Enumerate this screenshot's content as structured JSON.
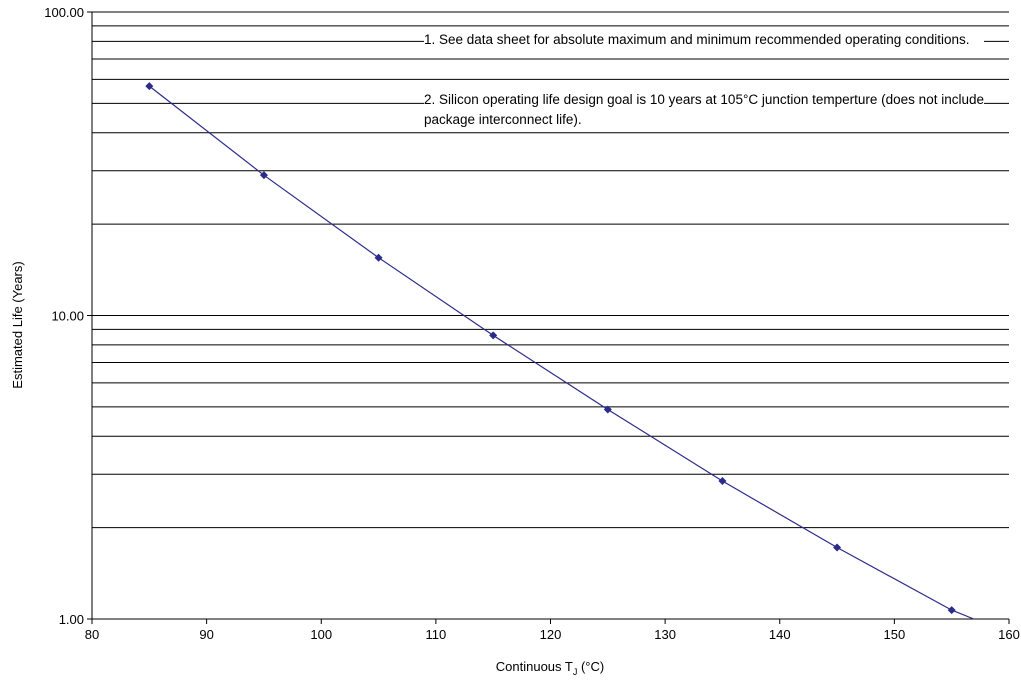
{
  "chart_data": {
    "type": "line",
    "title": "",
    "xlabel_main": "Continuous T",
    "xlabel_sub": "J",
    "xlabel_unit": " (°C)",
    "ylabel": "Estimated Life (Years)",
    "xlim": [
      80,
      160
    ],
    "ylim": [
      1,
      100
    ],
    "yscale": "log",
    "x_ticks": [
      80,
      90,
      100,
      110,
      120,
      130,
      140,
      150,
      160
    ],
    "y_ticks": [
      "1.00",
      "10.00",
      "100.00"
    ],
    "grid": "horizontal",
    "series": [
      {
        "color": "#2b2b8a",
        "marker": "diamond",
        "x": [
          85,
          95,
          105,
          115,
          125,
          135,
          145,
          155,
          157.5
        ],
        "y": [
          57,
          29,
          15.5,
          8.6,
          4.9,
          2.85,
          1.72,
          1.07,
          0.98
        ],
        "markers_at": [
          85,
          95,
          105,
          115,
          125,
          135,
          145,
          155
        ]
      }
    ],
    "annotations": [
      "1. See data sheet for absolute maximum and minimum recommended operating conditions.",
      "2. Silicon operating life design goal is 10 years at 105°C junction temperture (does not include package interconnect life)."
    ]
  }
}
